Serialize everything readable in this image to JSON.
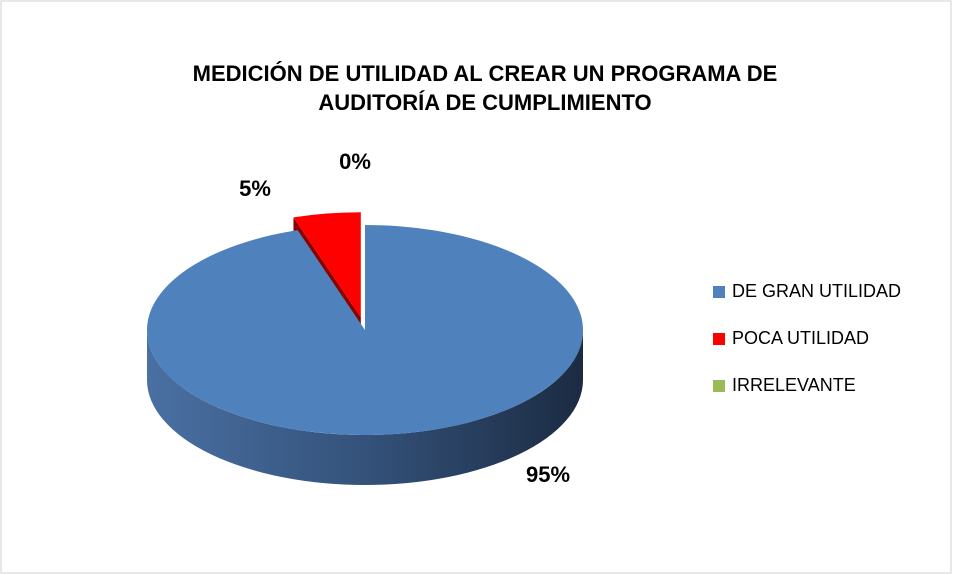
{
  "chart_data": {
    "type": "pie",
    "title": [
      "MEDICIÓN DE UTILIDAD AL CREAR UN PROGRAMA DE",
      "AUDITORÍA DE CUMPLIMIENTO"
    ],
    "categories": [
      "DE GRAN UTILIDAD",
      "POCA UTILIDAD",
      "IRRELEVANTE"
    ],
    "values": [
      95,
      5,
      0
    ],
    "value_labels": [
      "95%",
      "5%",
      "0%"
    ],
    "colors": [
      "#4f81bd",
      "#ff0000",
      "#9bbb59"
    ],
    "legend": "right"
  }
}
